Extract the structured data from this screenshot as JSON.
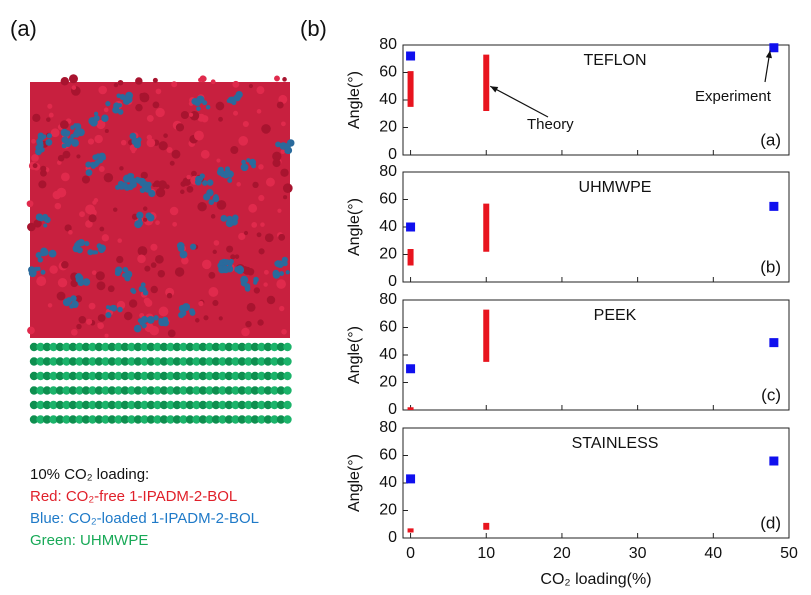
{
  "left_panel": {
    "label": "(a)",
    "caption": [
      "10% CO₂ loading:",
      "Red: CO₂-free 1-IPADM-2-BOL",
      "Blue: CO₂-loaded 1-IPADM-2-BOL",
      "Green: UHMWPE"
    ],
    "caption_colors": [
      "#111111",
      "#e0202a",
      "#1f7ac8",
      "#18a957"
    ]
  },
  "right_label": "(b)",
  "chart_data": [
    {
      "type": "range",
      "title": "TEFLON",
      "panel": "(a)",
      "ylabel": "Angle(°)",
      "xlim": [
        -1,
        50
      ],
      "xticks": [
        0,
        10,
        20,
        30,
        40,
        50
      ],
      "ylim": [
        0,
        80
      ],
      "yticks": [
        0,
        20,
        40,
        60,
        80
      ],
      "series": [
        {
          "color": "#e8141e",
          "x": [
            0,
            10
          ],
          "low": [
            35,
            32
          ],
          "high": [
            61,
            73
          ]
        },
        {
          "color": "#1010ee",
          "x": [
            0,
            48
          ],
          "values": [
            72,
            78
          ]
        }
      ],
      "annotations": [
        "Theory",
        "Experiment"
      ]
    },
    {
      "type": "range",
      "title": "UHMWPE",
      "panel": "(b)",
      "ylabel": "Angle(°)",
      "xlim": [
        -1,
        50
      ],
      "xticks": [
        0,
        10,
        20,
        30,
        40,
        50
      ],
      "ylim": [
        0,
        80
      ],
      "yticks": [
        0,
        20,
        40,
        60,
        80
      ],
      "series": [
        {
          "color": "#e8141e",
          "x": [
            0,
            10
          ],
          "low": [
            12,
            22
          ],
          "high": [
            24,
            57
          ]
        },
        {
          "color": "#1010ee",
          "x": [
            0,
            48
          ],
          "values": [
            40,
            55
          ]
        }
      ]
    },
    {
      "type": "range",
      "title": "PEEK",
      "panel": "(c)",
      "ylabel": "Angle(°)",
      "xlim": [
        -1,
        50
      ],
      "xticks": [
        0,
        10,
        20,
        30,
        40,
        50
      ],
      "ylim": [
        0,
        80
      ],
      "yticks": [
        0,
        20,
        40,
        60,
        80
      ],
      "series": [
        {
          "color": "#e8141e",
          "x": [
            0,
            10
          ],
          "low": [
            0,
            35
          ],
          "high": [
            2,
            73
          ]
        },
        {
          "color": "#1010ee",
          "x": [
            0,
            48
          ],
          "values": [
            30,
            49
          ]
        }
      ]
    },
    {
      "type": "range",
      "title": "STAINLESS",
      "panel": "(d)",
      "ylabel": "Angle(°)",
      "xlabel": "CO₂ loading(%)",
      "xlim": [
        -1,
        50
      ],
      "xticks": [
        0,
        10,
        20,
        30,
        40,
        50
      ],
      "ylim": [
        0,
        80
      ],
      "yticks": [
        0,
        20,
        40,
        60,
        80
      ],
      "series": [
        {
          "color": "#e8141e",
          "x": [
            0,
            10
          ],
          "low": [
            4,
            6
          ],
          "high": [
            7,
            11
          ]
        },
        {
          "color": "#1010ee",
          "x": [
            0,
            48
          ],
          "values": [
            43,
            56
          ]
        }
      ]
    }
  ]
}
